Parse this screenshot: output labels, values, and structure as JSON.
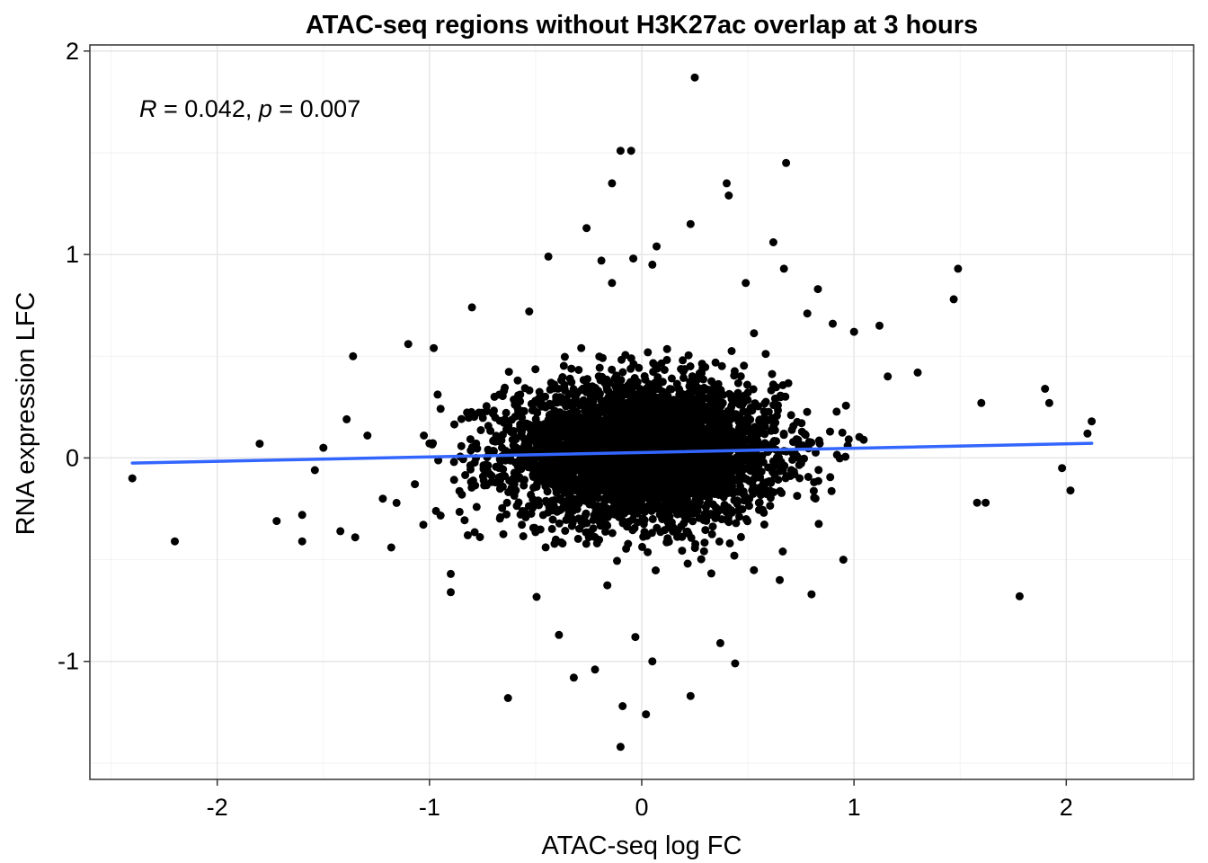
{
  "chart_data": {
    "type": "scatter",
    "title": "ATAC-seq regions without H3K27ac overlap at 3 hours",
    "xlabel": "ATAC-seq log FC",
    "ylabel": "RNA expression LFC",
    "xlim": [
      -2.6,
      2.6
    ],
    "ylim": [
      -1.58,
      2.03
    ],
    "x_ticks": [
      -2,
      -1,
      0,
      1,
      2
    ],
    "x_tick_labels": [
      "-2",
      "-1",
      "0",
      "1",
      "2"
    ],
    "y_ticks": [
      -1,
      0,
      1,
      2
    ],
    "y_tick_labels": [
      "-1",
      "0",
      "1",
      "2"
    ],
    "grid": true,
    "annotation": {
      "r_symbol": "R",
      "r_text": " = 0.042, ",
      "p_symbol": "p",
      "p_text": " = 0.007"
    },
    "regression_line": {
      "x": [
        -2.4,
        2.12
      ],
      "y": [
        -0.025,
        0.072
      ],
      "color": "#3366FF"
    },
    "point_color": "#000000",
    "cluster": {
      "n": 4200,
      "x_mean": 0.0,
      "x_sd": 0.32,
      "y_mean": 0.03,
      "y_sd": 0.17
    },
    "outliers": [
      {
        "x": 0.25,
        "y": 1.87
      },
      {
        "x": -0.1,
        "y": 1.51
      },
      {
        "x": -0.05,
        "y": 1.51
      },
      {
        "x": 0.68,
        "y": 1.45
      },
      {
        "x": -0.14,
        "y": 1.35
      },
      {
        "x": 0.4,
        "y": 1.35
      },
      {
        "x": 0.41,
        "y": 1.29
      },
      {
        "x": 0.23,
        "y": 1.15
      },
      {
        "x": -0.26,
        "y": 1.13
      },
      {
        "x": 0.62,
        "y": 1.06
      },
      {
        "x": 0.07,
        "y": 1.04
      },
      {
        "x": -0.44,
        "y": 0.99
      },
      {
        "x": -0.19,
        "y": 0.97
      },
      {
        "x": -0.04,
        "y": 0.98
      },
      {
        "x": 0.05,
        "y": 0.95
      },
      {
        "x": 0.67,
        "y": 0.93
      },
      {
        "x": 1.49,
        "y": 0.93
      },
      {
        "x": -0.14,
        "y": 0.86
      },
      {
        "x": 0.49,
        "y": 0.86
      },
      {
        "x": 0.83,
        "y": 0.83
      },
      {
        "x": 1.47,
        "y": 0.78
      },
      {
        "x": -0.8,
        "y": 0.74
      },
      {
        "x": -0.53,
        "y": 0.72
      },
      {
        "x": -2.4,
        "y": -0.1
      },
      {
        "x": -2.2,
        "y": -0.41
      },
      {
        "x": -1.8,
        "y": 0.07
      },
      {
        "x": -1.72,
        "y": -0.31
      },
      {
        "x": -1.6,
        "y": -0.41
      },
      {
        "x": -1.54,
        "y": -0.06
      },
      {
        "x": -1.36,
        "y": 0.5
      },
      {
        "x": -1.5,
        "y": 0.05
      },
      {
        "x": -1.39,
        "y": 0.19
      },
      {
        "x": -1.1,
        "y": 0.56
      },
      {
        "x": -0.98,
        "y": 0.54
      },
      {
        "x": -1.18,
        "y": -0.44
      },
      {
        "x": -0.9,
        "y": -0.57
      },
      {
        "x": -0.9,
        "y": -0.66
      },
      {
        "x": -0.39,
        "y": -0.87
      },
      {
        "x": -0.32,
        "y": -1.08
      },
      {
        "x": -0.63,
        "y": -1.18
      },
      {
        "x": -0.22,
        "y": -1.04
      },
      {
        "x": -0.09,
        "y": -1.22
      },
      {
        "x": -0.03,
        "y": -0.88
      },
      {
        "x": 0.05,
        "y": -1.0
      },
      {
        "x": 0.02,
        "y": -1.26
      },
      {
        "x": -0.1,
        "y": -1.42
      },
      {
        "x": 0.23,
        "y": -1.17
      },
      {
        "x": 0.37,
        "y": -0.91
      },
      {
        "x": 0.44,
        "y": -1.01
      },
      {
        "x": 1.78,
        "y": -0.68
      },
      {
        "x": 2.1,
        "y": 0.12
      },
      {
        "x": 2.12,
        "y": 0.18
      },
      {
        "x": 1.98,
        "y": -0.05
      },
      {
        "x": 2.02,
        "y": -0.16
      },
      {
        "x": 1.92,
        "y": 0.27
      },
      {
        "x": 1.9,
        "y": 0.34
      },
      {
        "x": 1.6,
        "y": 0.27
      },
      {
        "x": 1.58,
        "y": -0.22
      },
      {
        "x": 1.62,
        "y": -0.22
      },
      {
        "x": 1.3,
        "y": 0.42
      },
      {
        "x": 1.0,
        "y": 0.62
      },
      {
        "x": 1.12,
        "y": 0.65
      },
      {
        "x": 0.9,
        "y": 0.66
      },
      {
        "x": 0.78,
        "y": 0.71
      },
      {
        "x": 0.95,
        "y": -0.5
      },
      {
        "x": 0.8,
        "y": -0.67
      },
      {
        "x": 0.65,
        "y": -0.6
      },
      {
        "x": -1.6,
        "y": -0.28
      },
      {
        "x": -1.42,
        "y": -0.36
      },
      {
        "x": -1.35,
        "y": -0.39
      },
      {
        "x": -0.82,
        "y": -0.38
      },
      {
        "x": -1.22,
        "y": -0.2
      }
    ]
  }
}
